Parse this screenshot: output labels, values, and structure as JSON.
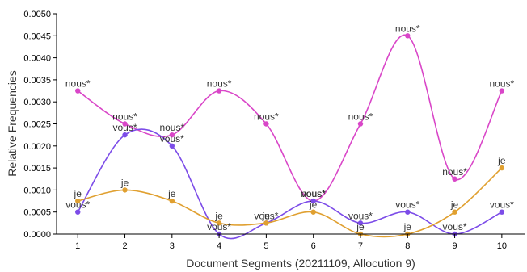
{
  "chart_data": {
    "type": "line",
    "title": "",
    "xlabel": "Document Segments (20211109, Allocution 9)",
    "ylabel": "Relative Frequencies",
    "x": [
      1,
      2,
      3,
      4,
      5,
      6,
      7,
      8,
      9,
      10
    ],
    "x_tick_labels": [
      "1",
      "2",
      "3",
      "4",
      "5",
      "6",
      "7",
      "8",
      "9",
      "10"
    ],
    "xlim": [
      0.55,
      10.5
    ],
    "ylim": [
      0,
      0.005
    ],
    "y_ticks": [
      0,
      0.0005,
      0.001,
      0.0015,
      0.002,
      0.0025,
      0.003,
      0.0035,
      0.004,
      0.0045,
      0.005
    ],
    "y_tick_labels": [
      "0.0000",
      "0.0005",
      "0.0010",
      "0.0015",
      "0.0020",
      "0.0025",
      "0.0030",
      "0.0035",
      "0.0040",
      "0.0045",
      "0.0050"
    ],
    "grid": false,
    "legend": "none",
    "series": [
      {
        "name": "nous*",
        "color": "#d946c8",
        "values": [
          0.00325,
          0.0025,
          0.00225,
          0.00325,
          0.0025,
          0.00075,
          0.0025,
          0.0045,
          0.00125,
          0.00325
        ],
        "labels": [
          "nous*",
          "nous*",
          "nous*",
          "nous*",
          "nous*",
          "nous*",
          "nous*",
          "nous*",
          "nous*",
          "nous*"
        ]
      },
      {
        "name": "vous*",
        "color": "#7c4ce8",
        "values": [
          0.0005,
          0.00225,
          0.002,
          0.0,
          0.00025,
          0.00075,
          0.00025,
          0.0005,
          0.0,
          0.0005
        ],
        "labels": [
          "vous*",
          "vous*",
          "vous*",
          "vous*",
          "vous*",
          "vous*",
          "vous*",
          "vous*",
          "vous*",
          "vous*"
        ]
      },
      {
        "name": "je",
        "color": "#e0a030",
        "values": [
          0.00075,
          0.001,
          0.00075,
          0.00025,
          0.00025,
          0.0005,
          0.0,
          0.0,
          0.0005,
          0.0015
        ],
        "labels": [
          "je",
          "je",
          "je",
          "je",
          "je",
          "je",
          "je",
          "je",
          "je",
          "je"
        ]
      }
    ]
  }
}
